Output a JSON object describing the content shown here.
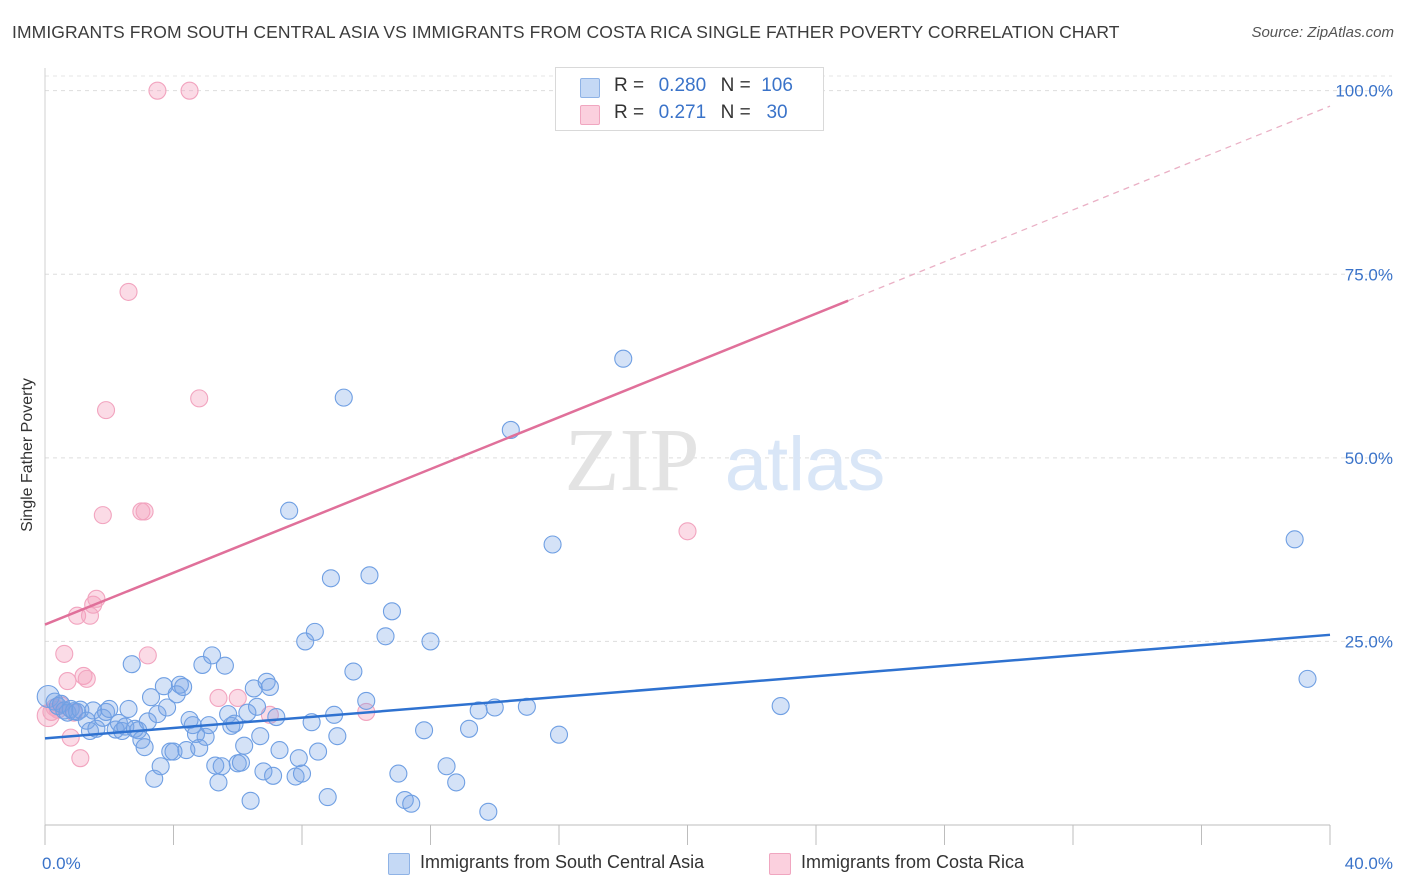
{
  "title": "IMMIGRANTS FROM SOUTH CENTRAL ASIA VS IMMIGRANTS FROM COSTA RICA SINGLE FATHER POVERTY CORRELATION CHART",
  "source": "Source: ZipAtlas.com",
  "watermark": {
    "zip": "ZIP",
    "atlas": "atlas"
  },
  "legend": {
    "r_label": "R =",
    "n_label": "N =",
    "series": [
      {
        "r": "0.280",
        "n": "106"
      },
      {
        "r": "0.271",
        "n": "30"
      }
    ]
  },
  "chart_data": {
    "type": "scatter",
    "title": "IMMIGRANTS FROM SOUTH CENTRAL ASIA VS IMMIGRANTS FROM COSTA RICA SINGLE FATHER POVERTY CORRELATION CHART",
    "xlabel": "",
    "ylabel": "Single Father Poverty",
    "xlim": [
      0,
      40
    ],
    "ylim": [
      0,
      102
    ],
    "x_tick_labels": [
      "0.0%",
      "40.0%"
    ],
    "y_ticks": [
      25,
      50,
      75,
      100
    ],
    "y_tick_labels": [
      "25.0%",
      "50.0%",
      "75.0%",
      "100.0%"
    ],
    "grid": true,
    "colors": {
      "blue": "#6f9fe3",
      "blue_line": "#2f72d0",
      "pink": "#f2a4bf",
      "pink_line": "#e0709a",
      "tick_text": "#3a73c9"
    },
    "series": [
      {
        "name": "Immigrants from South Central Asia",
        "color": "blue",
        "trend": {
          "x0": 0,
          "y0": 11.8,
          "x1": 40,
          "y1": 25.9
        },
        "points": [
          [
            0.1,
            17.5
          ],
          [
            0.3,
            16.8
          ],
          [
            0.4,
            16.2
          ],
          [
            0.5,
            16.5
          ],
          [
            0.6,
            15.6
          ],
          [
            0.7,
            15.3
          ],
          [
            0.8,
            15.8
          ],
          [
            0.9,
            15.5
          ],
          [
            1.0,
            15.4
          ],
          [
            1.1,
            15.7
          ],
          [
            1.3,
            14.2
          ],
          [
            1.4,
            12.8
          ],
          [
            1.5,
            15.6
          ],
          [
            1.6,
            13.1
          ],
          [
            1.8,
            14.6
          ],
          [
            1.9,
            15.4
          ],
          [
            2.0,
            15.8
          ],
          [
            2.2,
            13.0
          ],
          [
            2.3,
            13.9
          ],
          [
            2.4,
            12.8
          ],
          [
            2.5,
            13.4
          ],
          [
            2.6,
            15.8
          ],
          [
            2.7,
            21.9
          ],
          [
            2.8,
            13.1
          ],
          [
            2.9,
            12.9
          ],
          [
            3.0,
            11.6
          ],
          [
            3.1,
            10.6
          ],
          [
            3.2,
            14.1
          ],
          [
            3.3,
            17.4
          ],
          [
            3.4,
            6.3
          ],
          [
            3.5,
            15.1
          ],
          [
            3.6,
            8.0
          ],
          [
            3.7,
            18.9
          ],
          [
            3.8,
            16.0
          ],
          [
            3.9,
            10.0
          ],
          [
            4.0,
            10.0
          ],
          [
            4.1,
            17.8
          ],
          [
            4.2,
            19.1
          ],
          [
            4.3,
            18.8
          ],
          [
            4.4,
            10.2
          ],
          [
            4.5,
            14.3
          ],
          [
            4.6,
            13.6
          ],
          [
            4.7,
            12.4
          ],
          [
            4.8,
            10.5
          ],
          [
            4.9,
            21.8
          ],
          [
            5.0,
            12.0
          ],
          [
            5.1,
            13.6
          ],
          [
            5.2,
            23.1
          ],
          [
            5.3,
            8.1
          ],
          [
            5.4,
            5.8
          ],
          [
            5.5,
            8.0
          ],
          [
            5.6,
            21.7
          ],
          [
            5.7,
            15.1
          ],
          [
            5.8,
            13.5
          ],
          [
            5.9,
            13.8
          ],
          [
            6.0,
            8.4
          ],
          [
            6.1,
            8.5
          ],
          [
            6.2,
            10.8
          ],
          [
            6.3,
            15.3
          ],
          [
            6.4,
            3.3
          ],
          [
            6.5,
            18.6
          ],
          [
            6.6,
            16.1
          ],
          [
            6.7,
            12.1
          ],
          [
            6.8,
            7.3
          ],
          [
            6.9,
            19.5
          ],
          [
            7.0,
            18.8
          ],
          [
            7.1,
            6.7
          ],
          [
            7.2,
            14.7
          ],
          [
            7.3,
            10.2
          ],
          [
            7.6,
            42.8
          ],
          [
            7.8,
            6.6
          ],
          [
            7.9,
            9.1
          ],
          [
            8.0,
            7.0
          ],
          [
            8.1,
            25.0
          ],
          [
            8.3,
            14.0
          ],
          [
            8.4,
            26.3
          ],
          [
            8.5,
            10.0
          ],
          [
            8.8,
            3.8
          ],
          [
            8.9,
            33.6
          ],
          [
            9.0,
            15.0
          ],
          [
            9.1,
            12.1
          ],
          [
            9.3,
            58.2
          ],
          [
            9.6,
            20.9
          ],
          [
            10.0,
            16.9
          ],
          [
            10.1,
            34.0
          ],
          [
            10.6,
            25.7
          ],
          [
            10.8,
            29.1
          ],
          [
            11.0,
            7.0
          ],
          [
            11.2,
            3.4
          ],
          [
            11.4,
            2.9
          ],
          [
            11.8,
            12.9
          ],
          [
            12.0,
            25.0
          ],
          [
            12.5,
            8.0
          ],
          [
            12.8,
            5.8
          ],
          [
            13.2,
            13.1
          ],
          [
            13.5,
            15.6
          ],
          [
            13.8,
            1.8
          ],
          [
            14.0,
            16.0
          ],
          [
            14.5,
            53.8
          ],
          [
            15.0,
            16.1
          ],
          [
            15.8,
            38.2
          ],
          [
            16.0,
            12.3
          ],
          [
            18.0,
            63.5
          ],
          [
            22.9,
            16.2
          ],
          [
            38.9,
            38.9
          ],
          [
            39.3,
            19.9
          ]
        ]
      },
      {
        "name": "Immigrants from Costa Rica",
        "color": "pink",
        "trend": {
          "x0": 0,
          "y0": 27.3,
          "x1": 25,
          "y1": 71.4,
          "dash_to_x": 40,
          "dash_to_y": 97.9
        },
        "points": [
          [
            0.1,
            14.9
          ],
          [
            0.2,
            15.4
          ],
          [
            0.3,
            16.0
          ],
          [
            0.4,
            15.7
          ],
          [
            0.5,
            16.3
          ],
          [
            0.6,
            23.3
          ],
          [
            0.7,
            19.6
          ],
          [
            0.8,
            11.9
          ],
          [
            0.9,
            15.3
          ],
          [
            1.0,
            28.5
          ],
          [
            1.1,
            9.1
          ],
          [
            1.2,
            20.3
          ],
          [
            1.3,
            19.9
          ],
          [
            1.4,
            28.5
          ],
          [
            1.5,
            30.0
          ],
          [
            1.6,
            30.8
          ],
          [
            1.8,
            42.2
          ],
          [
            1.9,
            56.5
          ],
          [
            2.6,
            72.6
          ],
          [
            3.0,
            42.7
          ],
          [
            3.1,
            42.7
          ],
          [
            3.2,
            23.1
          ],
          [
            3.5,
            100.0
          ],
          [
            4.5,
            100.0
          ],
          [
            4.8,
            58.1
          ],
          [
            5.4,
            17.3
          ],
          [
            6.0,
            17.3
          ],
          [
            7.0,
            15.0
          ],
          [
            10.0,
            15.4
          ],
          [
            20.0,
            40.0
          ]
        ]
      }
    ]
  }
}
